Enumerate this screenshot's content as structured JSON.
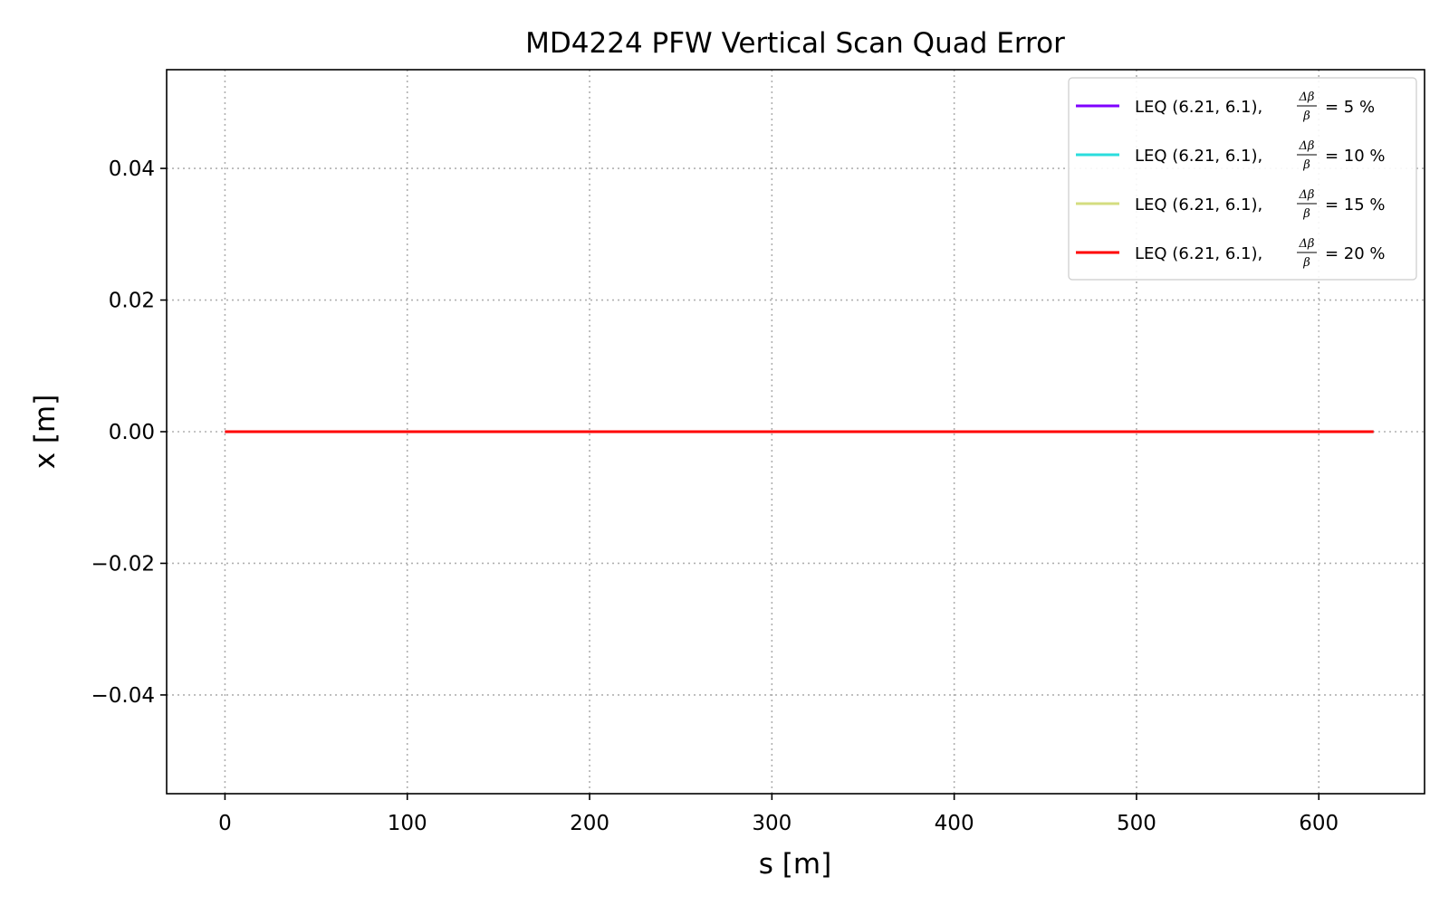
{
  "chart_data": {
    "type": "line",
    "title": "MD4224 PFW Vertical Scan Quad Error",
    "xlabel": "s [m]",
    "ylabel": "x [m]",
    "xlim": [
      -32,
      658
    ],
    "ylim": [
      -0.055,
      0.055
    ],
    "xticks": [
      0,
      100,
      200,
      300,
      400,
      500,
      600
    ],
    "xtick_labels": [
      "0",
      "100",
      "200",
      "300",
      "400",
      "500",
      "600"
    ],
    "yticks": [
      -0.04,
      -0.02,
      0.0,
      0.02,
      0.04
    ],
    "ytick_labels": [
      "−0.04",
      "−0.02",
      "0.00",
      "0.02",
      "0.04"
    ],
    "grid": true,
    "legend_position": "top-right",
    "legend_fraction": {
      "numerator": "Δβ",
      "denominator": "β"
    },
    "series": [
      {
        "name": "LEQ (6.21, 6.1),",
        "pct": "= 5 %",
        "color": "#7f00ff",
        "x": [
          0,
          630
        ],
        "y": [
          0.0,
          0.0
        ]
      },
      {
        "name": "LEQ (6.21, 6.1),",
        "pct": "= 10 %",
        "color": "#2adddd",
        "x": [
          0,
          630
        ],
        "y": [
          0.0,
          0.0
        ]
      },
      {
        "name": "LEQ (6.21, 6.1),",
        "pct": "= 15 %",
        "color": "#d4dd80",
        "x": [
          0,
          630
        ],
        "y": [
          0.0,
          0.0
        ]
      },
      {
        "name": "LEQ (6.21, 6.1),",
        "pct": "= 20 %",
        "color": "#ff0000",
        "x": [
          0,
          630
        ],
        "y": [
          0.0,
          0.0
        ]
      }
    ]
  }
}
